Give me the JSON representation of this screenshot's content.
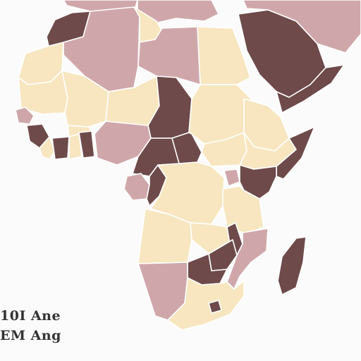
{
  "palette": {
    "background": "#fbfbfb",
    "dark": "#6e4a4a",
    "mauve": "#cfa7aa",
    "cream": "#f7e6c0",
    "border": "#ffffff"
  },
  "legend": {
    "line1": "10I Ane",
    "line2": "EM Ang"
  },
  "regions": [
    {
      "name": "europe-iberia",
      "tone": "mauve"
    },
    {
      "name": "europe-mainland",
      "tone": "mauve"
    },
    {
      "name": "middle-east-levant",
      "tone": "mauve"
    },
    {
      "name": "arabian-peninsula",
      "tone": "dark"
    },
    {
      "name": "yemen",
      "tone": "dark"
    },
    {
      "name": "morocco",
      "tone": "dark"
    },
    {
      "name": "western-sahara",
      "tone": "cream"
    },
    {
      "name": "algeria",
      "tone": "mauve"
    },
    {
      "name": "tunisia",
      "tone": "cream"
    },
    {
      "name": "libya",
      "tone": "mauve"
    },
    {
      "name": "egypt",
      "tone": "cream"
    },
    {
      "name": "mauritania",
      "tone": "cream"
    },
    {
      "name": "mali",
      "tone": "cream"
    },
    {
      "name": "niger",
      "tone": "cream"
    },
    {
      "name": "chad",
      "tone": "dark"
    },
    {
      "name": "sudan",
      "tone": "cream"
    },
    {
      "name": "eritrea",
      "tone": "cream"
    },
    {
      "name": "senegal",
      "tone": "mauve"
    },
    {
      "name": "guinea",
      "tone": "dark"
    },
    {
      "name": "sierra-leone",
      "tone": "cream"
    },
    {
      "name": "cote-divoire",
      "tone": "dark"
    },
    {
      "name": "ghana",
      "tone": "cream"
    },
    {
      "name": "burkina-faso",
      "tone": "cream"
    },
    {
      "name": "togo-benin",
      "tone": "dark"
    },
    {
      "name": "nigeria",
      "tone": "mauve"
    },
    {
      "name": "cameroon",
      "tone": "dark"
    },
    {
      "name": "central-african-republic",
      "tone": "dark"
    },
    {
      "name": "south-sudan",
      "tone": "cream"
    },
    {
      "name": "ethiopia",
      "tone": "cream"
    },
    {
      "name": "somalia",
      "tone": "dark"
    },
    {
      "name": "gabon",
      "tone": "mauve"
    },
    {
      "name": "congo",
      "tone": "dark"
    },
    {
      "name": "dr-congo",
      "tone": "cream"
    },
    {
      "name": "uganda",
      "tone": "mauve"
    },
    {
      "name": "kenya",
      "tone": "dark"
    },
    {
      "name": "tanzania",
      "tone": "cream"
    },
    {
      "name": "angola",
      "tone": "cream"
    },
    {
      "name": "zambia",
      "tone": "cream"
    },
    {
      "name": "malawi",
      "tone": "dark"
    },
    {
      "name": "mozambique",
      "tone": "mauve"
    },
    {
      "name": "zimbabwe",
      "tone": "dark"
    },
    {
      "name": "botswana",
      "tone": "dark"
    },
    {
      "name": "namibia",
      "tone": "mauve"
    },
    {
      "name": "south-africa",
      "tone": "cream"
    },
    {
      "name": "lesotho",
      "tone": "dark"
    },
    {
      "name": "madagascar",
      "tone": "dark"
    }
  ]
}
